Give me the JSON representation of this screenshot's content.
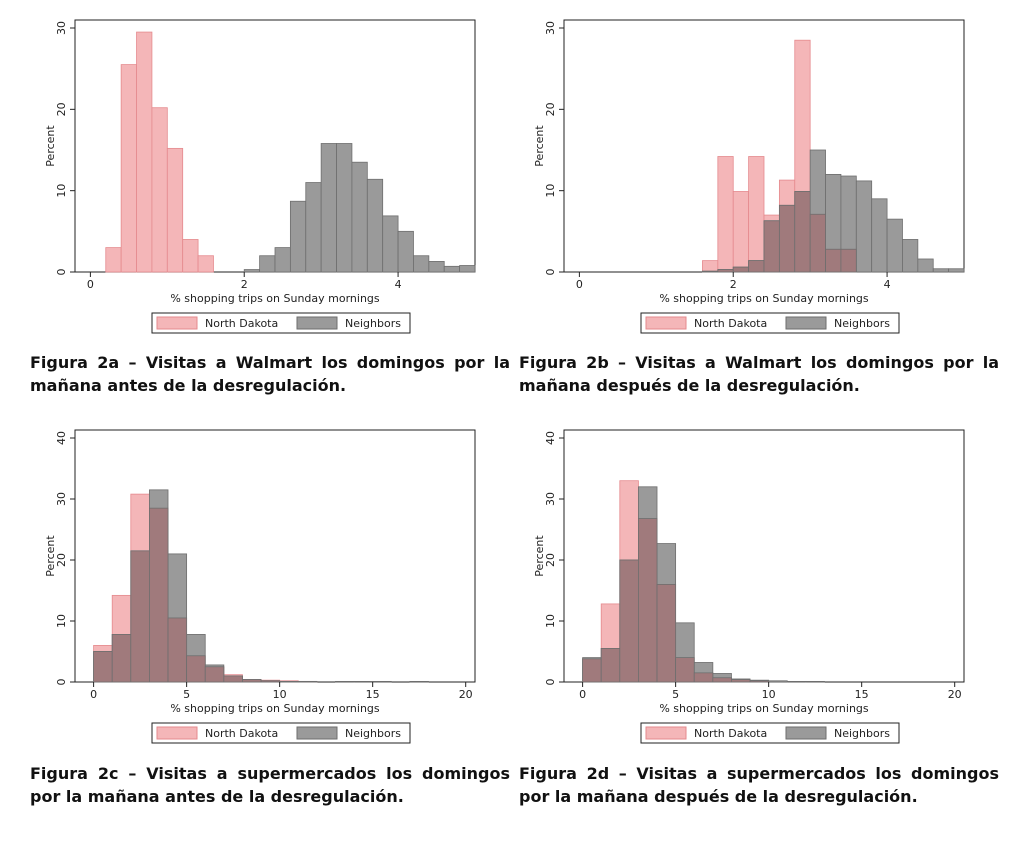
{
  "colors": {
    "nd_fill": "#f4b6b8",
    "nd_stroke": "#e58a8e",
    "nb_fill": "#9a9a9a",
    "nb_stroke": "#6e6e6e",
    "overlap_fill": "#a07a7c"
  },
  "captions": [
    "Figura 2a – Visitas a Walmart los domingos por la mañana antes de la desregulación.",
    "Figura 2b – Visitas a Walmart los domingos por la mañana después de la desregulación.",
    "Figura 2c – Visitas a supermercados los domingos por la mañana antes de la desregulación.",
    "Figura 2d – Visitas a supermercados los domingos por la mañana después de la desregulación."
  ],
  "chart_data": [
    {
      "type": "bar",
      "xlabel": "% shopping trips on Sunday mornings",
      "ylabel": "Percent",
      "xlim": [
        -0.2,
        5.0
      ],
      "ylim": [
        0,
        30
      ],
      "xticks": [
        0,
        2,
        4
      ],
      "yticks": [
        0,
        10,
        20,
        30
      ],
      "legend": "bottom",
      "series": [
        {
          "name": "North Dakota",
          "bin_width": 0.2,
          "bin_starts": [
            0.2,
            0.4,
            0.6,
            0.8,
            1.0,
            1.2,
            1.4
          ],
          "values": [
            3,
            25.5,
            29.5,
            20.2,
            15.2,
            4,
            2
          ]
        },
        {
          "name": "Neighbors",
          "bin_width": 0.2,
          "bin_starts": [
            2.0,
            2.2,
            2.4,
            2.6,
            2.8,
            3.0,
            3.2,
            3.4,
            3.6,
            3.8,
            4.0,
            4.2,
            4.4,
            4.6,
            4.8
          ],
          "values": [
            0.3,
            2,
            3,
            8.7,
            11,
            15.8,
            15.8,
            13.5,
            11.4,
            6.9,
            5,
            2,
            1.3,
            0.7,
            0.8
          ]
        }
      ]
    },
    {
      "type": "bar",
      "xlabel": "% shopping trips on Sunday mornings",
      "ylabel": "Percent",
      "xlim": [
        -0.2,
        5.0
      ],
      "ylim": [
        0,
        30
      ],
      "xticks": [
        0,
        2,
        4
      ],
      "yticks": [
        0,
        10,
        20,
        30
      ],
      "legend": "bottom",
      "series": [
        {
          "name": "North Dakota",
          "bin_width": 0.2,
          "bin_starts": [
            1.6,
            1.8,
            2.0,
            2.2,
            2.4,
            2.6,
            2.8,
            3.0,
            3.2,
            3.4
          ],
          "values": [
            1.4,
            14.2,
            9.9,
            14.2,
            7,
            11.3,
            28.5,
            7.1,
            2.8,
            2.8
          ]
        },
        {
          "name": "Neighbors",
          "bin_width": 0.2,
          "bin_starts": [
            1.6,
            1.8,
            2.0,
            2.2,
            2.4,
            2.6,
            2.8,
            3.0,
            3.2,
            3.4,
            3.6,
            3.8,
            4.0,
            4.2,
            4.4,
            4.6,
            4.8
          ],
          "values": [
            0.1,
            0.3,
            0.6,
            1.4,
            6.3,
            8.2,
            9.9,
            15,
            12,
            11.8,
            11.2,
            9,
            6.5,
            4,
            1.6,
            0.4,
            0.4
          ]
        }
      ]
    },
    {
      "type": "bar",
      "xlabel": "% shopping trips on Sunday mornings",
      "ylabel": "Percent",
      "xlim": [
        -1,
        20.5
      ],
      "ylim": [
        0,
        40
      ],
      "xticks": [
        0,
        5,
        10,
        15,
        20
      ],
      "yticks": [
        0,
        10,
        20,
        30,
        40
      ],
      "legend": "bottom",
      "series": [
        {
          "name": "North Dakota",
          "bin_width": 1,
          "bin_starts": [
            0,
            1,
            2,
            3,
            4,
            5,
            6,
            7,
            8,
            9,
            10,
            11
          ],
          "values": [
            6,
            14.2,
            30.8,
            28.5,
            10.5,
            4.3,
            2.5,
            1.2,
            0.4,
            0.3,
            0.2,
            0.1
          ]
        },
        {
          "name": "Neighbors",
          "bin_width": 1,
          "bin_starts": [
            0,
            1,
            2,
            3,
            4,
            5,
            6,
            7,
            8,
            9,
            10,
            11,
            13,
            14,
            15,
            17
          ],
          "values": [
            5,
            7.8,
            21.5,
            31.5,
            21,
            7.8,
            2.8,
            1,
            0.4,
            0.2,
            0.1,
            0.1,
            0.1,
            0.1,
            0.1,
            0.1
          ]
        }
      ]
    },
    {
      "type": "bar",
      "xlabel": "% shopping trips on Sunday mornings",
      "ylabel": "Percent",
      "xlim": [
        -1,
        20.5
      ],
      "ylim": [
        0,
        40
      ],
      "xticks": [
        0,
        5,
        10,
        15,
        20
      ],
      "yticks": [
        0,
        10,
        20,
        30,
        40
      ],
      "legend": "bottom",
      "series": [
        {
          "name": "North Dakota",
          "bin_width": 1,
          "bin_starts": [
            0,
            1,
            2,
            3,
            4,
            5,
            6,
            7,
            8,
            9
          ],
          "values": [
            3.8,
            12.8,
            33,
            26.8,
            16,
            4,
            1.5,
            0.7,
            0.4,
            0.2
          ]
        },
        {
          "name": "Neighbors",
          "bin_width": 1,
          "bin_starts": [
            0,
            1,
            2,
            3,
            4,
            5,
            6,
            7,
            8,
            9,
            10,
            11,
            12
          ],
          "values": [
            4,
            5.5,
            20,
            32,
            22.7,
            9.7,
            3.2,
            1.4,
            0.5,
            0.3,
            0.2,
            0.1,
            0.1
          ]
        }
      ]
    }
  ]
}
